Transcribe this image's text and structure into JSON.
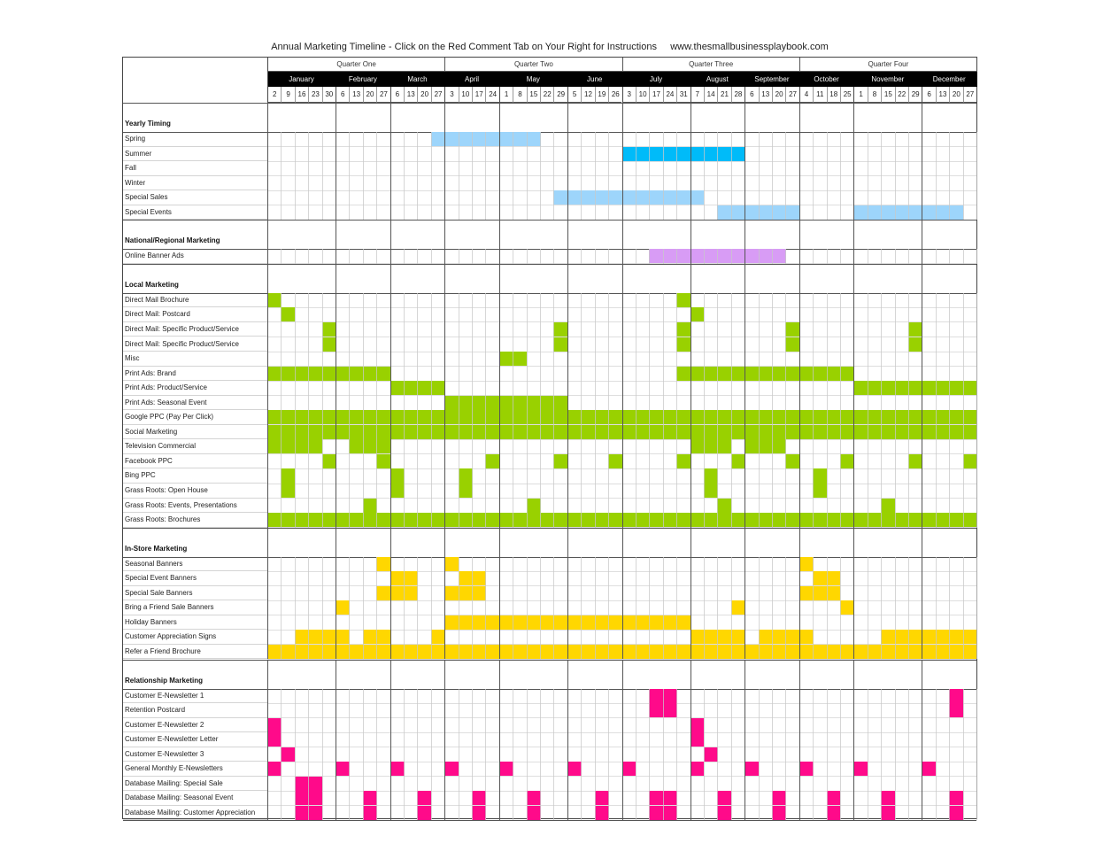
{
  "title": "Annual Marketing Timeline - Click on the Red Comment Tab on Your Right for Instructions     www.thesmallbusinessplaybook.com",
  "colors": {
    "light_blue": "#9dd5fb",
    "cyan": "#00bbf9",
    "purple": "#d89cf5",
    "green": "#99d100",
    "yellow": "#ffd700",
    "pink": "#ff0a8a"
  },
  "quarters": [
    {
      "label": "Quarter One",
      "start": 0,
      "span": 13
    },
    {
      "label": "Quarter Two",
      "start": 13,
      "span": 13
    },
    {
      "label": "Quarter Three",
      "start": 26,
      "span": 13
    },
    {
      "label": "Quarter Four",
      "start": 39,
      "span": 13
    }
  ],
  "months": [
    {
      "label": "January",
      "start": 0,
      "span": 5
    },
    {
      "label": "February",
      "start": 5,
      "span": 4
    },
    {
      "label": "March",
      "start": 9,
      "span": 4
    },
    {
      "label": "April",
      "start": 13,
      "span": 4
    },
    {
      "label": "May",
      "start": 17,
      "span": 5
    },
    {
      "label": "June",
      "start": 22,
      "span": 4
    },
    {
      "label": "July",
      "start": 26,
      "span": 5
    },
    {
      "label": "August",
      "start": 31,
      "span": 4
    },
    {
      "label": "September",
      "start": 35,
      "span": 4
    },
    {
      "label": "October",
      "start": 39,
      "span": 4
    },
    {
      "label": "November",
      "start": 43,
      "span": 5
    },
    {
      "label": "December",
      "start": 48,
      "span": 4
    }
  ],
  "weeks": [
    "2",
    "9",
    "16",
    "23",
    "30",
    "6",
    "13",
    "20",
    "27",
    "6",
    "13",
    "20",
    "27",
    "3",
    "10",
    "17",
    "24",
    "1",
    "8",
    "15",
    "22",
    "29",
    "5",
    "12",
    "19",
    "26",
    "3",
    "10",
    "17",
    "24",
    "31",
    "7",
    "14",
    "21",
    "28",
    "6",
    "13",
    "20",
    "27",
    "4",
    "11",
    "18",
    "25",
    "1",
    "8",
    "15",
    "22",
    "29",
    "6",
    "13",
    "20",
    "27"
  ],
  "sections": [
    {
      "title": "Yearly Timing",
      "rows": [
        {
          "label": "Spring",
          "color": "light_blue",
          "cells": [
            12,
            13,
            14,
            15,
            16,
            17,
            18,
            19
          ]
        },
        {
          "label": "Summer",
          "color": "cyan",
          "cells": [
            26,
            27,
            28,
            29,
            30,
            31,
            32,
            33,
            34
          ]
        },
        {
          "label": "Fall",
          "color": "light_blue",
          "cells": []
        },
        {
          "label": "Winter",
          "color": "light_blue",
          "cells": []
        },
        {
          "label": "Special Sales",
          "color": "light_blue",
          "cells": [
            21,
            22,
            23,
            24,
            25,
            26,
            27,
            28,
            29,
            30,
            31
          ]
        },
        {
          "label": "Special Events",
          "color": "light_blue",
          "cells": [
            33,
            34,
            35,
            36,
            37,
            38,
            43,
            44,
            45,
            46,
            47,
            48,
            49,
            50
          ]
        }
      ]
    },
    {
      "title": "National/Regional Marketing",
      "rows": [
        {
          "label": "Online Banner Ads",
          "color": "purple",
          "cells": [
            28,
            29,
            30,
            31,
            32,
            33,
            34,
            35,
            36,
            37
          ]
        }
      ]
    },
    {
      "title": "Local Marketing",
      "rows": [
        {
          "label": "Direct Mail Brochure",
          "color": "green",
          "cells": [
            0,
            30
          ]
        },
        {
          "label": "Direct Mail: Postcard",
          "color": "green",
          "cells": [
            1,
            31
          ]
        },
        {
          "label": "Direct Mail: Specific Product/Service",
          "color": "green",
          "cells": [
            4,
            21,
            30,
            38,
            47
          ]
        },
        {
          "label": "Direct Mail: Specific Product/Service",
          "color": "green",
          "cells": [
            4,
            21,
            30,
            38,
            47
          ]
        },
        {
          "label": "Misc",
          "color": "green",
          "cells": [
            17,
            18
          ]
        },
        {
          "label": "Print Ads: Brand",
          "color": "green",
          "cells": [
            0,
            1,
            2,
            3,
            4,
            5,
            6,
            7,
            8,
            30,
            31,
            32,
            33,
            34,
            35,
            36,
            37,
            38,
            39,
            40,
            41,
            42
          ]
        },
        {
          "label": "Print Ads: Product/Service",
          "color": "green",
          "cells": [
            9,
            10,
            11,
            12,
            43,
            44,
            45,
            46,
            47,
            48,
            49,
            50,
            51
          ]
        },
        {
          "label": "Print Ads: Seasonal Event",
          "color": "green",
          "cells": [
            13,
            14,
            15,
            16,
            17,
            18,
            19,
            20,
            21
          ]
        },
        {
          "label": "Google PPC (Pay Per Click)",
          "color": "green",
          "cells": "all"
        },
        {
          "label": "Social Marketing",
          "color": "green",
          "cells": "all"
        },
        {
          "label": "Television Commercial",
          "color": "green",
          "cells": [
            0,
            1,
            2,
            3,
            6,
            7,
            8,
            31,
            32,
            33,
            35,
            36,
            37
          ]
        },
        {
          "label": "Facebook PPC",
          "color": "green",
          "cells": [
            4,
            8,
            16,
            21,
            25,
            30,
            34,
            38,
            42,
            47,
            51
          ]
        },
        {
          "label": "Bing PPC",
          "color": "green",
          "cells": [
            1,
            9,
            14,
            32,
            40
          ]
        },
        {
          "label": "Grass Roots: Open House",
          "color": "green",
          "cells": [
            1,
            9,
            14,
            32,
            40
          ]
        },
        {
          "label": "Grass Roots: Events, Presentations",
          "color": "green",
          "cells": [
            7,
            19,
            33,
            45
          ]
        },
        {
          "label": "Grass Roots: Brochures",
          "color": "green",
          "cells": "all"
        }
      ]
    },
    {
      "title": "In-Store Marketing",
      "rows": [
        {
          "label": "Seasonal Banners",
          "color": "yellow",
          "cells": [
            8,
            13,
            39
          ]
        },
        {
          "label": "Special Event Banners",
          "color": "yellow",
          "cells": [
            9,
            10,
            14,
            15,
            40,
            41
          ]
        },
        {
          "label": "Special Sale Banners",
          "color": "yellow",
          "cells": [
            8,
            9,
            10,
            13,
            14,
            15,
            39,
            40,
            41
          ]
        },
        {
          "label": "Bring a Friend Sale Banners",
          "color": "yellow",
          "cells": [
            5,
            34,
            42
          ]
        },
        {
          "label": "Holiday Banners",
          "color": "yellow",
          "cells": [
            13,
            14,
            15,
            16,
            17,
            18,
            19,
            20,
            21,
            22,
            23,
            24,
            25,
            26,
            27,
            28,
            29,
            30
          ]
        },
        {
          "label": "Customer Appreciation Signs",
          "color": "yellow",
          "cells": [
            2,
            3,
            4,
            5,
            7,
            8,
            12,
            31,
            32,
            33,
            34,
            36,
            37,
            38,
            39,
            45,
            46,
            47,
            48,
            49,
            50,
            51
          ]
        },
        {
          "label": "Refer a Friend Brochure",
          "color": "yellow",
          "cells": "all"
        }
      ]
    },
    {
      "title": "Relationship Marketing",
      "rows": [
        {
          "label": "Customer E-Newsletter 1",
          "color": "pink",
          "cells": [
            28,
            29,
            50
          ]
        },
        {
          "label": "Retention Postcard",
          "color": "pink",
          "cells": [
            28,
            29,
            50
          ]
        },
        {
          "label": "Customer E-Newsletter 2",
          "color": "pink",
          "cells": [
            0,
            31
          ]
        },
        {
          "label": "Customer E-Newsletter Letter",
          "color": "pink",
          "cells": [
            0,
            31
          ]
        },
        {
          "label": "Customer E-Newsletter 3",
          "color": "pink",
          "cells": [
            1,
            32
          ]
        },
        {
          "label": "General  Monthly E-Newsletters",
          "color": "pink",
          "cells": [
            0,
            5,
            9,
            13,
            17,
            22,
            26,
            31,
            35,
            39,
            43,
            48
          ]
        },
        {
          "label": "Database Mailing: Special Sale",
          "color": "pink",
          "cells": [
            2,
            3
          ]
        },
        {
          "label": "Database Mailing: Seasonal Event",
          "color": "pink",
          "cells": [
            2,
            3,
            7,
            11,
            15,
            19,
            24,
            28,
            29,
            33,
            37,
            41,
            45,
            50
          ]
        },
        {
          "label": "Database Mailing: Customer Appreciation",
          "color": "pink",
          "cells": [
            2,
            3,
            7,
            11,
            15,
            19,
            24,
            28,
            29,
            33,
            37,
            41,
            45,
            50
          ]
        }
      ]
    }
  ]
}
